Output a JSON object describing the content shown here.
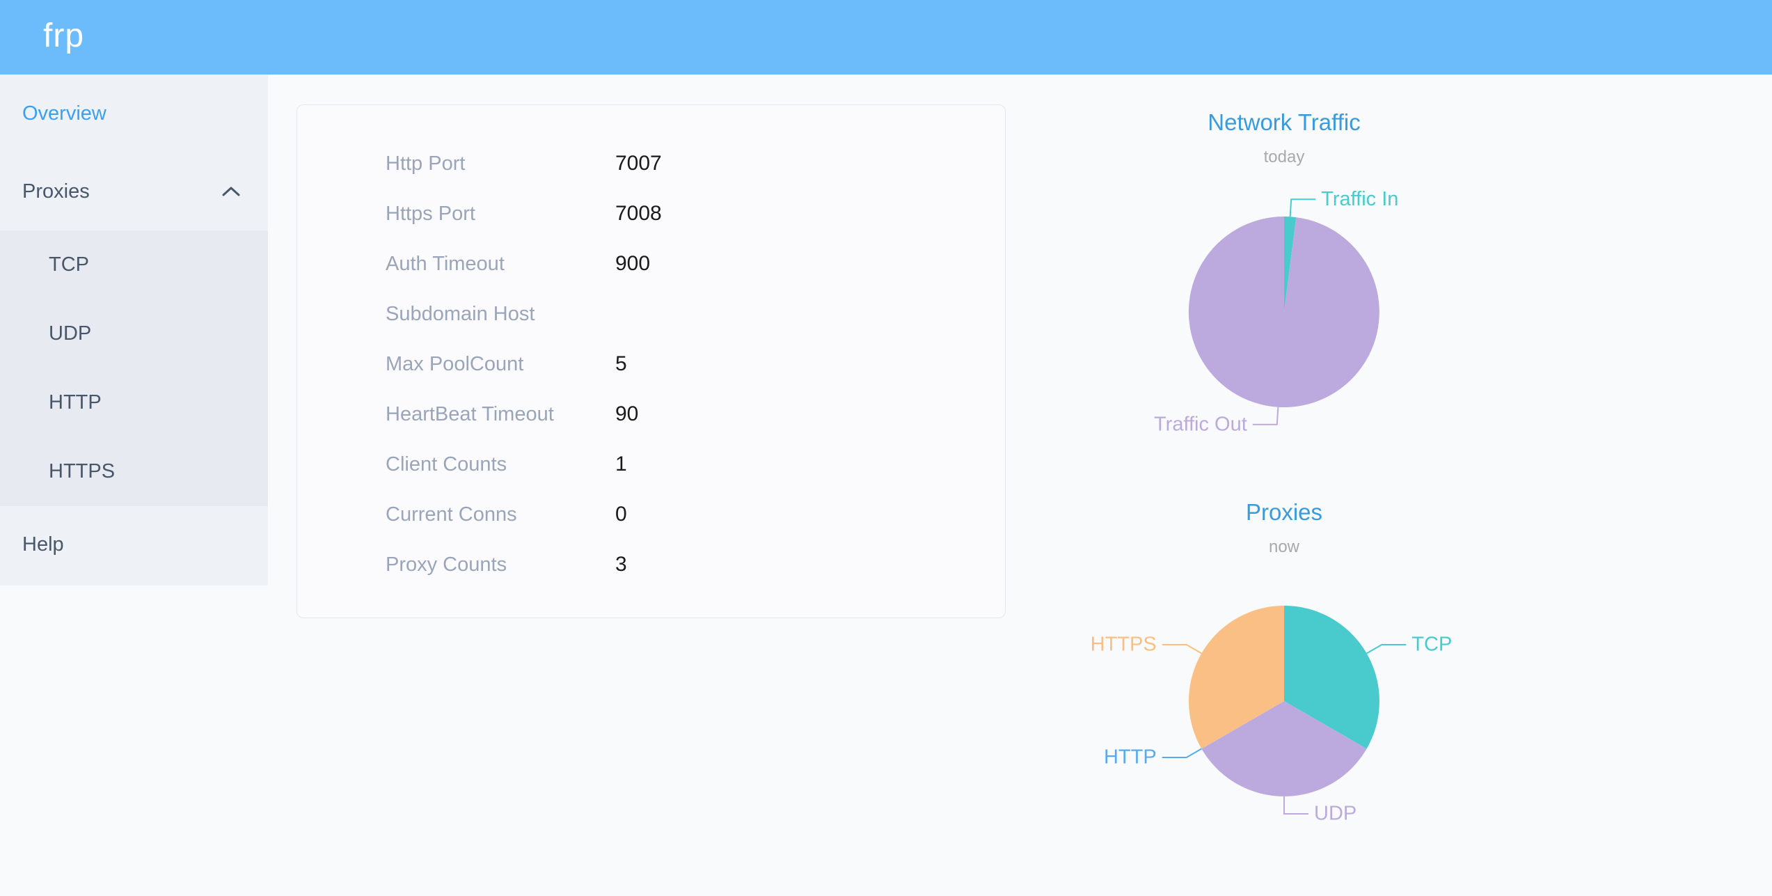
{
  "header": {
    "logo": "frp"
  },
  "sidebar": {
    "items": [
      {
        "label": "Overview",
        "active": true
      },
      {
        "label": "Proxies",
        "expanded": true,
        "children": [
          "TCP",
          "UDP",
          "HTTP",
          "HTTPS"
        ]
      },
      {
        "label": "Help"
      }
    ]
  },
  "overview_card": {
    "rows": [
      {
        "label": "Http Port",
        "value": "7007"
      },
      {
        "label": "Https Port",
        "value": "7008"
      },
      {
        "label": "Auth Timeout",
        "value": "900"
      },
      {
        "label": "Subdomain Host",
        "value": ""
      },
      {
        "label": "Max PoolCount",
        "value": "5"
      },
      {
        "label": "HeartBeat Timeout",
        "value": "90"
      },
      {
        "label": "Client Counts",
        "value": "1"
      },
      {
        "label": "Current Conns",
        "value": "0"
      },
      {
        "label": "Proxy Counts",
        "value": "3"
      }
    ]
  },
  "chart_data": [
    {
      "type": "pie",
      "title": "Network Traffic",
      "subtitle": "today",
      "legend_position": "outside-leader-labels",
      "series": [
        {
          "name": "Traffic In",
          "value": 2,
          "color": "#49cbce"
        },
        {
          "name": "Traffic Out",
          "value": 98,
          "color": "#bcaade"
        }
      ],
      "value_note": "relative share (%) estimated from slice angles; byte totals not shown"
    },
    {
      "type": "pie",
      "title": "Proxies",
      "subtitle": "now",
      "legend_position": "outside-leader-labels",
      "series": [
        {
          "name": "TCP",
          "value": 1,
          "color": "#49cbce"
        },
        {
          "name": "UDP",
          "value": 1,
          "color": "#bcaade"
        },
        {
          "name": "HTTP",
          "value": 0,
          "color": "#58abef"
        },
        {
          "name": "HTTPS",
          "value": 1,
          "color": "#f9bf85"
        }
      ]
    }
  ],
  "colors": {
    "header_bg": "#6cbcfb",
    "sidebar_bg": "#eef1f6",
    "submenu_bg": "#e7ebf1",
    "active_menu_text": "#3ba0f0",
    "menu_text": "#48576a",
    "card_label": "#9aa5b8",
    "card_value": "#1a1a1a",
    "card_border": "#e3e7f5",
    "chart_title": "#3a9bdc",
    "chart_subtitle": "#a9a9a9",
    "pie_teal": "#49cbce",
    "pie_purple": "#bcaade",
    "pie_blue": "#58abef",
    "pie_orange": "#f9bf85"
  }
}
